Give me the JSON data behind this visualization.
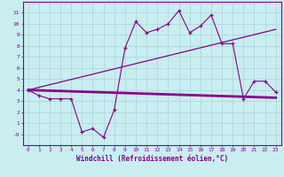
{
  "title": "",
  "xlabel": "Windchill (Refroidissement éolien,°C)",
  "ylabel": "",
  "bg_color": "#c8eef0",
  "grid_color": "#b0d8dc",
  "line_color": "#880088",
  "text_color": "#880088",
  "xlim": [
    -0.5,
    23.5
  ],
  "ylim": [
    -1.0,
    12.0
  ],
  "xticks": [
    0,
    1,
    2,
    3,
    4,
    5,
    6,
    7,
    8,
    9,
    10,
    11,
    12,
    13,
    14,
    15,
    16,
    17,
    18,
    19,
    20,
    21,
    22,
    23
  ],
  "yticks": [
    0,
    1,
    2,
    3,
    4,
    5,
    6,
    7,
    8,
    9,
    10,
    11
  ],
  "ytick_labels": [
    "-0",
    "1",
    "2",
    "3",
    "4",
    "5",
    "6",
    "7",
    "8",
    "9",
    "10",
    "11"
  ],
  "line1_x": [
    0,
    1,
    2,
    3,
    4,
    5,
    6,
    7,
    8,
    9,
    10,
    11,
    12,
    13,
    14,
    15,
    16,
    17,
    18,
    19,
    20,
    21,
    22,
    23
  ],
  "line1_y": [
    4.0,
    3.5,
    3.2,
    3.2,
    3.2,
    0.2,
    0.5,
    -0.3,
    2.2,
    7.8,
    10.2,
    9.2,
    9.5,
    10.0,
    11.2,
    9.2,
    9.8,
    10.8,
    8.2,
    8.2,
    3.2,
    4.8,
    4.8,
    3.8
  ],
  "line2_x": [
    0,
    23
  ],
  "line2_y": [
    4.0,
    3.3
  ],
  "line3_x": [
    0,
    23
  ],
  "line3_y": [
    4.0,
    9.5
  ]
}
